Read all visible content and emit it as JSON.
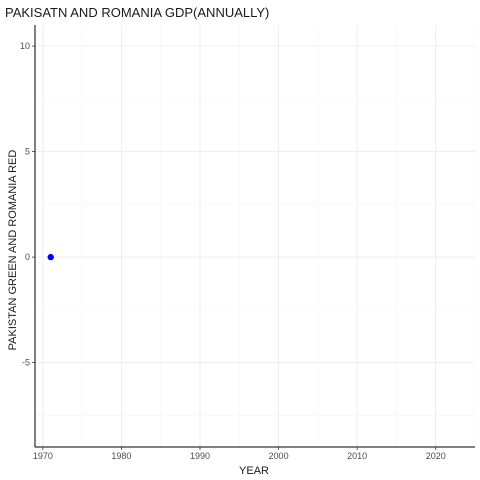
{
  "chart_data": {
    "type": "scatter",
    "title": "PAKISATN AND ROMANIA GDP(ANNUALLY)",
    "xlabel": "YEAR",
    "ylabel": "PAKISTAN GREEN AND ROMANIA RED",
    "xlim": [
      1969,
      2025
    ],
    "ylim": [
      -9,
      11
    ],
    "x_ticks": [
      1970,
      1980,
      1990,
      2000,
      2010,
      2020
    ],
    "y_ticks": [
      -5,
      0,
      5,
      10
    ],
    "grid": true,
    "series": [
      {
        "color": "#0000ff",
        "points": [
          {
            "x": 1971,
            "y": 0
          }
        ]
      }
    ]
  }
}
